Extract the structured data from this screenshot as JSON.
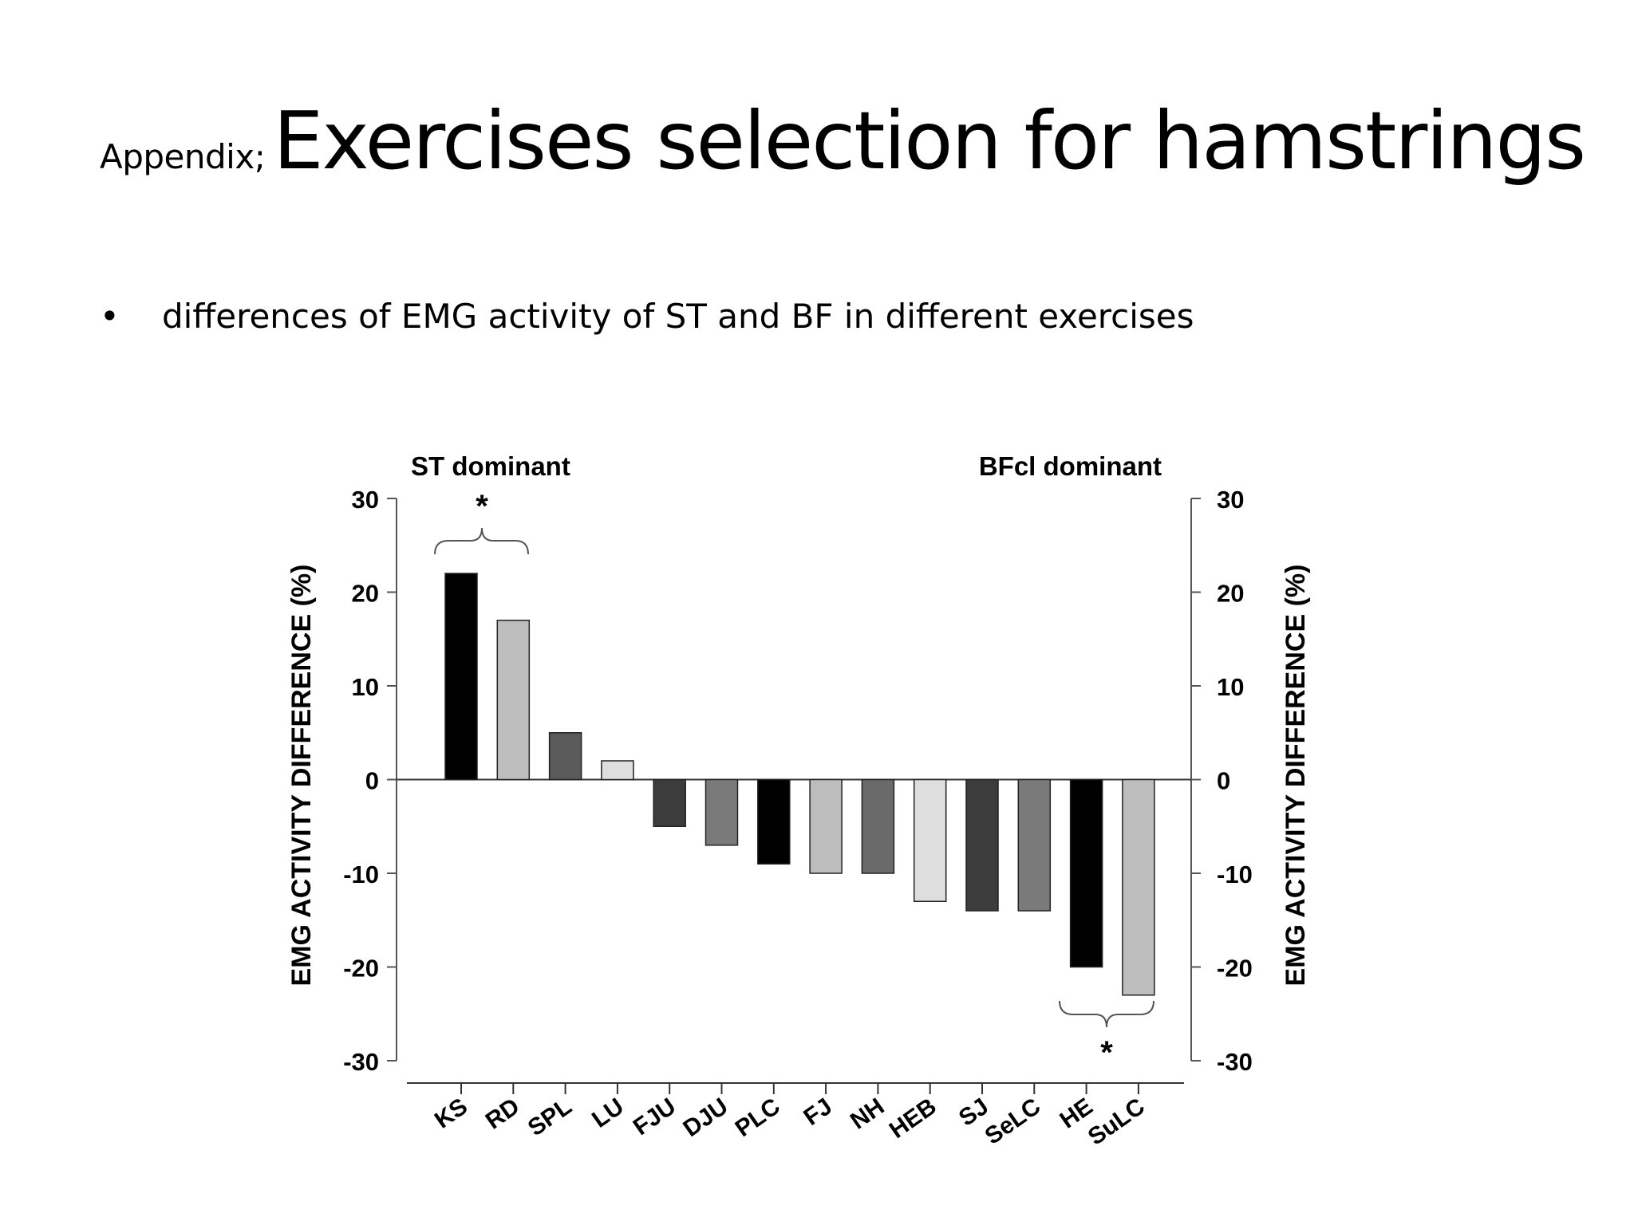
{
  "slide": {
    "title_prefix": "Appendix;",
    "title_main": "Exercises selection for hamstrings",
    "bullet": "differences of EMG activity of ST and BF in different exercises"
  },
  "chart_data": {
    "type": "bar",
    "categories": [
      "KS",
      "RD",
      "SPL",
      "LU",
      "FJU",
      "DJU",
      "PLC",
      "FJ",
      "NH",
      "HEB",
      "SJ",
      "SeLC",
      "HE",
      "SuLC"
    ],
    "values": [
      22,
      17,
      5,
      2,
      -5,
      -7,
      -9,
      -10,
      -10,
      -13,
      -14,
      -14,
      -20,
      -23
    ],
    "bar_colors": [
      "#000000",
      "#bdbdbd",
      "#5a5a5a",
      "#dedede",
      "#3c3c3c",
      "#7a7a7a",
      "#000000",
      "#bdbdbd",
      "#6a6a6a",
      "#dedede",
      "#3c3c3c",
      "#7a7a7a",
      "#000000",
      "#bdbdbd"
    ],
    "ylabel_left": "EMG ACTIVITY DIFFERENCE  (%)",
    "ylabel_right": "EMG ACTIVITY DIFFERENCE  (%)",
    "ylim": [
      -30,
      30
    ],
    "yticks": [
      30,
      20,
      10,
      0,
      -10,
      -20,
      -30
    ],
    "ytick_labels": [
      "30",
      "20",
      "10",
      "0",
      "-10",
      "-20",
      "-30"
    ],
    "annotations": {
      "left_group": "ST dominant",
      "right_group": "BFcl dominant",
      "left_star": "*",
      "right_star": "*"
    },
    "grid": false
  }
}
